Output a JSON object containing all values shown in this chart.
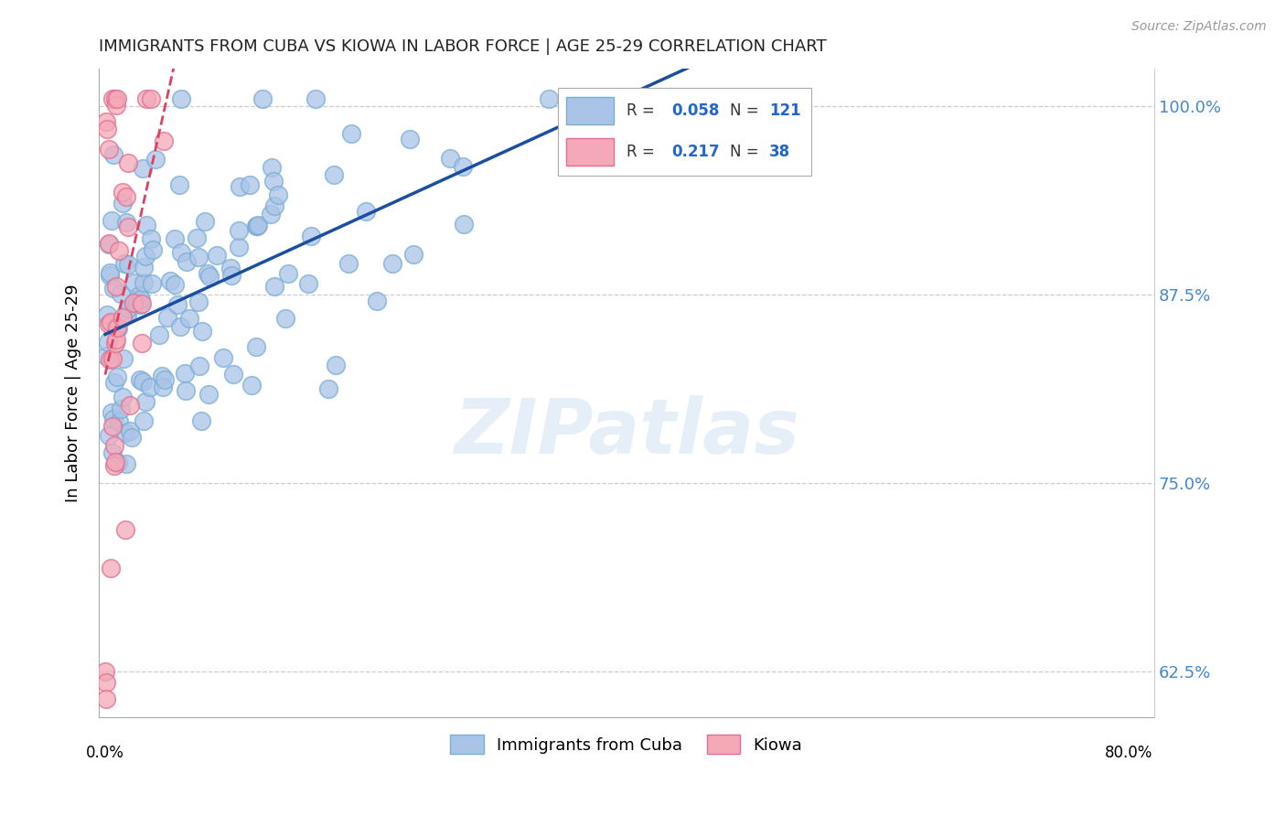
{
  "title": "IMMIGRANTS FROM CUBA VS KIOWA IN LABOR FORCE | AGE 25-29 CORRELATION CHART",
  "source": "Source: ZipAtlas.com",
  "ylabel": "In Labor Force | Age 25-29",
  "watermark": "ZIPatlas",
  "cuba_color": "#aac4e8",
  "cuba_edge": "#7aadd4",
  "kiowa_color": "#f4a8b8",
  "kiowa_edge": "#e07090",
  "trendline_cuba_color": "#1a4fa0",
  "trendline_kiowa_color": "#e04060",
  "background": "#ffffff",
  "grid_color": "#cccccc",
  "right_label_color": "#4488cc",
  "cuba_R": "0.058",
  "cuba_N": "121",
  "kiowa_R": "0.217",
  "kiowa_N": "38",
  "xlim_min": -0.005,
  "xlim_max": 0.82,
  "ylim_min": 0.595,
  "ylim_max": 1.025,
  "yticks": [
    0.625,
    0.75,
    0.875,
    1.0
  ],
  "ytick_labels": [
    "62.5%",
    "75.0%",
    "87.5%",
    "100.0%"
  ]
}
